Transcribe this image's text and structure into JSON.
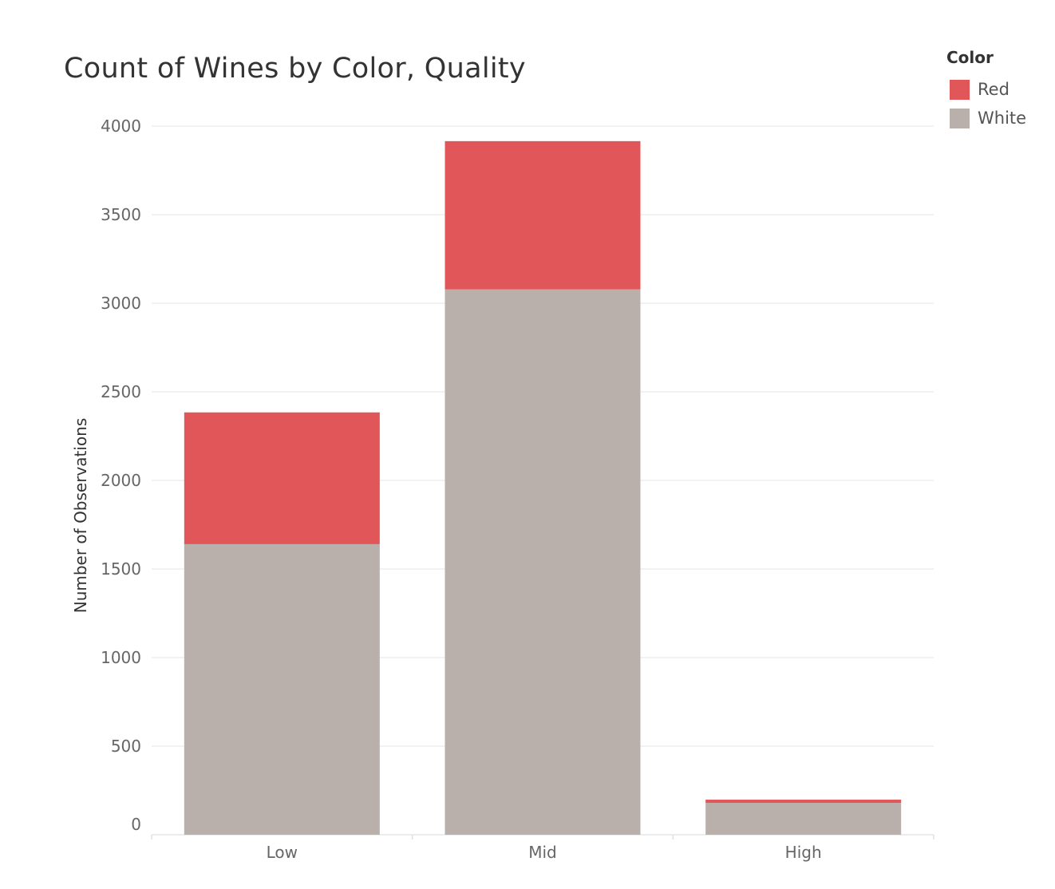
{
  "chart_data": {
    "type": "bar",
    "stacked": true,
    "title": "Count of Wines by Color, Quality",
    "xlabel": "",
    "ylabel": "Number of Observations",
    "categories": [
      "Low",
      "Mid",
      "High"
    ],
    "series": [
      {
        "name": "White",
        "color": "#bab0ab",
        "values": [
          1640,
          3078,
          180
        ]
      },
      {
        "name": "Red",
        "color": "#e15759",
        "values": [
          744,
          837,
          18
        ]
      }
    ],
    "ylim": [
      0,
      4000
    ],
    "yticks": [
      0,
      500,
      1000,
      1500,
      2000,
      2500,
      3000,
      3500,
      4000
    ],
    "grid": true,
    "legend": {
      "title": "Color",
      "placement": "top-right",
      "entries": [
        {
          "label": "Red",
          "color": "#e15759"
        },
        {
          "label": "White",
          "color": "#bab0ab"
        }
      ]
    }
  }
}
